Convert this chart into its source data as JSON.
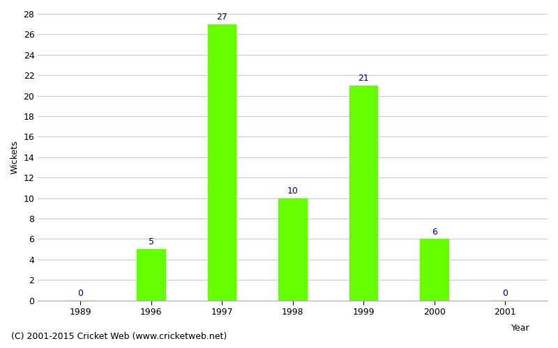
{
  "categories": [
    "1989",
    "1996",
    "1997",
    "1998",
    "1999",
    "2000",
    "2001"
  ],
  "values": [
    0,
    5,
    27,
    10,
    21,
    6,
    0
  ],
  "bar_color": "#66ff00",
  "label_color": "#000080",
  "xlabel": "Year",
  "ylabel": "Wickets",
  "ylim": [
    0,
    28
  ],
  "yticks": [
    0,
    2,
    4,
    6,
    8,
    10,
    12,
    14,
    16,
    18,
    20,
    22,
    24,
    26,
    28
  ],
  "background_color": "#ffffff",
  "grid_color": "#cccccc",
  "footer": "(C) 2001-2015 Cricket Web (www.cricketweb.net)",
  "label_fontsize": 9,
  "axis_fontsize": 9,
  "footer_fontsize": 9,
  "bar_width": 0.4
}
